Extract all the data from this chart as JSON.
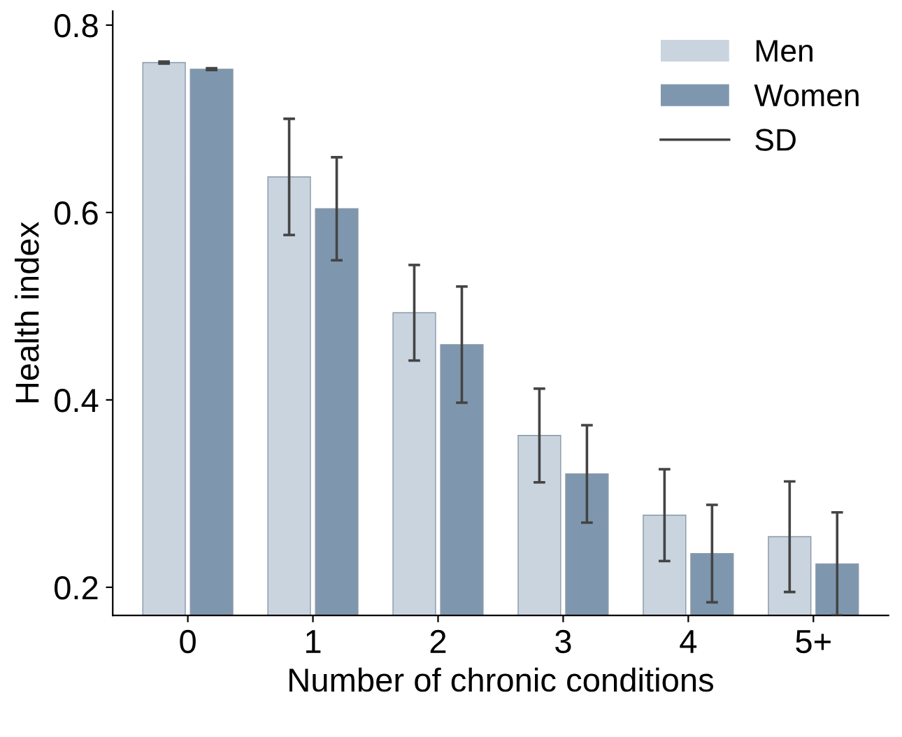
{
  "chart_data": {
    "type": "bar",
    "xlabel": "Number of chronic conditions",
    "ylabel": "Health index",
    "categories": [
      "0",
      "1",
      "2",
      "3",
      "4",
      "5+"
    ],
    "series": [
      {
        "name": "Men",
        "color": "#c9d4df",
        "values": [
          0.76,
          0.638,
          0.493,
          0.362,
          0.277,
          0.254
        ],
        "errors": [
          0.001,
          0.062,
          0.051,
          0.05,
          0.049,
          0.059
        ]
      },
      {
        "name": "Women",
        "color": "#7f97ae",
        "values": [
          0.753,
          0.604,
          0.459,
          0.321,
          0.236,
          0.225
        ],
        "errors": [
          0.001,
          0.055,
          0.062,
          0.052,
          0.052,
          0.055
        ]
      }
    ],
    "annotations": [
      "SD"
    ],
    "ylim": [
      0.17,
      0.815
    ],
    "yticks": [
      0.2,
      0.4,
      0.6,
      0.8
    ],
    "grid": false,
    "legend": "top right"
  }
}
